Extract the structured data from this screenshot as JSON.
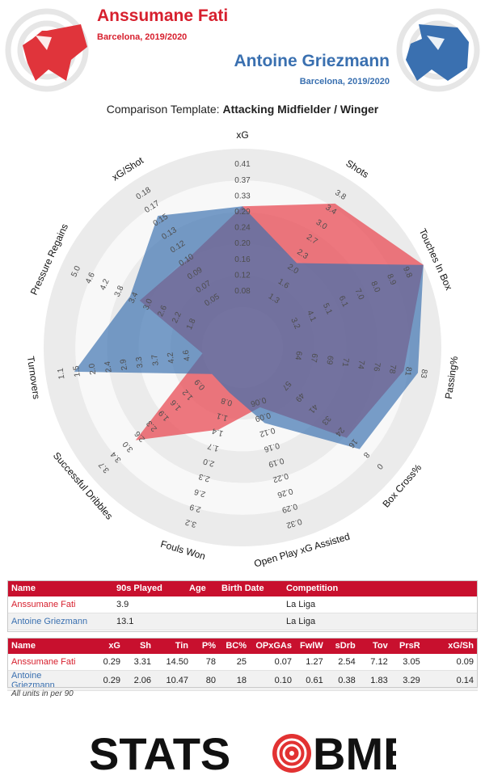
{
  "header": {
    "player1": {
      "name": "Anssumane Fati",
      "subtitle": "Barcelona, 2019/2020",
      "color": "#d7202e"
    },
    "player2": {
      "name": "Antoine Griezmann",
      "subtitle": "Barcelona, 2019/2020",
      "color": "#3a70b0"
    },
    "template_label": "Comparison Template:",
    "template_value": "Attacking Midfielder / Winger"
  },
  "chart_data": {
    "type": "radar",
    "axes": [
      {
        "label": "xG",
        "ticks": [
          "0.08",
          "0.12",
          "0.16",
          "0.20",
          "0.24",
          "0.29",
          "0.33",
          "0.37",
          "0.41"
        ],
        "min": 0.08,
        "max": 0.41
      },
      {
        "label": "Shots",
        "ticks": [
          "1.3",
          "1.6",
          "2.0",
          "2.3",
          "2.7",
          "3.0",
          "3.4",
          "3.8"
        ],
        "min": 1.0,
        "max": 3.8
      },
      {
        "label": "Touches In Box",
        "ticks": [
          "3.2",
          "4.1",
          "5.1",
          "6.1",
          "7.0",
          "8.0",
          "8.9",
          "9.8"
        ],
        "min": 2.2,
        "max": 9.8
      },
      {
        "label": "Passing%",
        "ticks": [
          "64",
          "67",
          "69",
          "71",
          "74",
          "76",
          "78",
          "81",
          "83"
        ],
        "min": 61,
        "max": 83
      },
      {
        "label": "Box Cross%",
        "ticks": [
          "57",
          "49",
          "41",
          "33",
          "24",
          "16",
          "8",
          "0"
        ],
        "min": 65,
        "max": 0
      },
      {
        "label": "Open Play xG Assisted",
        "ticks": [
          "0.06",
          "0.09",
          "0.12",
          "0.16",
          "0.19",
          "0.22",
          "0.26",
          "0.29",
          "0.32"
        ],
        "min": 0.03,
        "max": 0.32
      },
      {
        "label": "Fouls Won",
        "ticks": [
          "0.8",
          "1.1",
          "1.4",
          "1.7",
          "2.0",
          "2.3",
          "2.6",
          "2.9",
          "3.2"
        ],
        "min": 0.5,
        "max": 3.2
      },
      {
        "label": "Successful Dribbles",
        "ticks": [
          "0.9",
          "1.2",
          "1.6",
          "1.9",
          "2.3",
          "2.6",
          "3.0",
          "3.4",
          "3.7"
        ],
        "min": 0.5,
        "max": 3.7
      },
      {
        "label": "Turnovers",
        "ticks": [
          "4.6",
          "4.2",
          "3.7",
          "3.3",
          "2.9",
          "2.4",
          "2.0",
          "1.5",
          "1.1"
        ],
        "min": 5.1,
        "max": 1.1
      },
      {
        "label": "Pressure Regains",
        "ticks": [
          "1.8",
          "2.2",
          "2.6",
          "3.0",
          "3.4",
          "3.8",
          "4.2",
          "4.6",
          "5.0"
        ],
        "min": 1.4,
        "max": 5.0
      },
      {
        "label": "xG/Shot",
        "ticks": [
          "0.05",
          "0.07",
          "0.09",
          "0.10",
          "0.12",
          "0.13",
          "0.15",
          "0.17",
          "0.18"
        ],
        "min": 0.03,
        "max": 0.18
      }
    ],
    "series": [
      {
        "name": "Anssumane Fati",
        "color": "#e9454f",
        "values": [
          0.29,
          3.31,
          9.8,
          78,
          25,
          0.07,
          1.27,
          2.54,
          7.12,
          3.05,
          0.09
        ]
      },
      {
        "name": "Antoine Griezmann",
        "color": "#3a70b0",
        "values": [
          0.29,
          2.06,
          9.8,
          80,
          18,
          0.1,
          0.61,
          0.38,
          1.83,
          3.29,
          0.14
        ]
      }
    ],
    "units_note": "All units in per 90"
  },
  "info_table": {
    "headers": [
      "Name",
      "90s Played",
      "Age",
      "Birth Date",
      "Competition"
    ],
    "rows": [
      [
        "Anssumane Fati",
        "3.9",
        "",
        "",
        "La Liga"
      ],
      [
        "Antoine Griezmann",
        "13.1",
        "",
        "",
        "La Liga"
      ]
    ]
  },
  "stats_table": {
    "headers": [
      "Name",
      "xG",
      "Sh",
      "Tin",
      "P%",
      "BC%",
      "OPxGAs",
      "FwlW",
      "sDrb",
      "Tov",
      "PrsR",
      "xG/Sh"
    ],
    "rows": [
      [
        "Anssumane Fati",
        "0.29",
        "3.31",
        "14.50",
        "78",
        "25",
        "0.07",
        "1.27",
        "2.54",
        "7.12",
        "3.05",
        "0.09"
      ],
      [
        "Antoine Griezmann",
        "0.29",
        "2.06",
        "10.47",
        "80",
        "18",
        "0.10",
        "0.61",
        "0.38",
        "1.83",
        "3.29",
        "0.14"
      ]
    ]
  },
  "logo": {
    "left": "STATS",
    "right": "BMB",
    "o_color": "#e23232",
    "text_color": "#111111"
  }
}
